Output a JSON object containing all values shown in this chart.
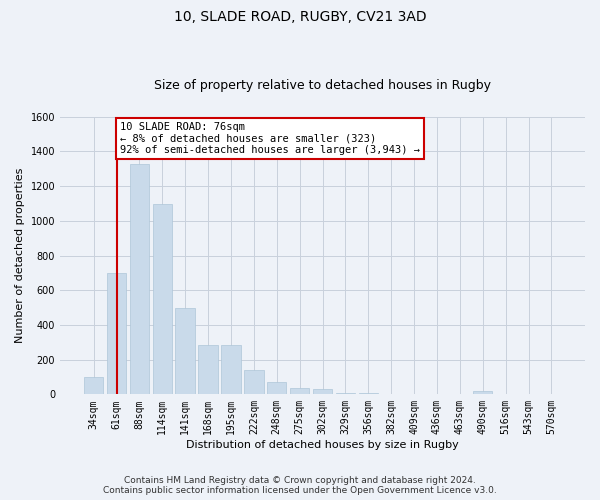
{
  "title_line1": "10, SLADE ROAD, RUGBY, CV21 3AD",
  "title_line2": "Size of property relative to detached houses in Rugby",
  "xlabel": "Distribution of detached houses by size in Rugby",
  "ylabel": "Number of detached properties",
  "categories": [
    "34sqm",
    "61sqm",
    "88sqm",
    "114sqm",
    "141sqm",
    "168sqm",
    "195sqm",
    "222sqm",
    "248sqm",
    "275sqm",
    "302sqm",
    "329sqm",
    "356sqm",
    "382sqm",
    "409sqm",
    "436sqm",
    "463sqm",
    "490sqm",
    "516sqm",
    "543sqm",
    "570sqm"
  ],
  "values": [
    100,
    700,
    1330,
    1100,
    500,
    285,
    285,
    140,
    70,
    35,
    30,
    10,
    10,
    0,
    0,
    0,
    0,
    20,
    0,
    0,
    0
  ],
  "bar_color": "#c9daea",
  "bar_edge_color": "#aec6d8",
  "highlight_bin_index": 1,
  "vline_color": "#cc0000",
  "annotation_text": "10 SLADE ROAD: 76sqm\n← 8% of detached houses are smaller (323)\n92% of semi-detached houses are larger (3,943) →",
  "annotation_box_color": "#ffffff",
  "annotation_box_edge": "#cc0000",
  "ylim": [
    0,
    1600
  ],
  "yticks": [
    0,
    200,
    400,
    600,
    800,
    1000,
    1200,
    1400,
    1600
  ],
  "grid_color": "#c8d0dc",
  "background_color": "#eef2f8",
  "footer_line1": "Contains HM Land Registry data © Crown copyright and database right 2024.",
  "footer_line2": "Contains public sector information licensed under the Open Government Licence v3.0.",
  "title_fontsize": 10,
  "subtitle_fontsize": 9,
  "axis_label_fontsize": 8,
  "tick_fontsize": 7,
  "footer_fontsize": 6.5,
  "annotation_fontsize": 7.5
}
